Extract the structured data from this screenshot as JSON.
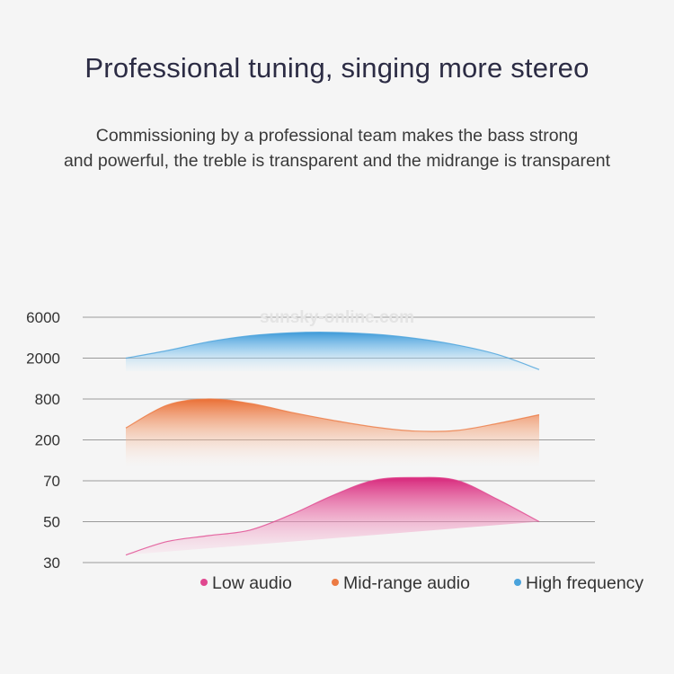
{
  "header": {
    "title": "Professional tuning, singing more stereo",
    "subtitle_line1": "Commissioning by a professional team makes the bass strong",
    "subtitle_line2": "and powerful, the treble is transparent and the midrange is transparent"
  },
  "watermark": "sunsky-online.com",
  "chart_data": {
    "type": "area",
    "title": "",
    "xlabel": "",
    "ylabel": "",
    "y_ticks": [
      "6000",
      "2000",
      "800",
      "200",
      "70",
      "50",
      "30"
    ],
    "grid": true,
    "legend_position": "bottom",
    "x_range": [
      0,
      10
    ],
    "series": [
      {
        "name": "High frequency",
        "color": "#4aa3dc",
        "x": [
          0,
          1,
          2,
          3,
          4,
          5,
          6,
          7,
          8,
          9,
          10
        ],
        "values": [
          2000,
          2450,
          3100,
          3650,
          3950,
          4000,
          3800,
          3400,
          2850,
          2200,
          1550
        ]
      },
      {
        "name": "Mid-range audio",
        "color": "#ec7a43",
        "x": [
          0,
          1,
          2,
          3,
          4,
          5,
          6,
          7,
          8,
          9,
          10
        ],
        "values": [
          300,
          650,
          800,
          690,
          510,
          390,
          310,
          270,
          275,
          350,
          470
        ]
      },
      {
        "name": "Low audio",
        "color": "#e0478f",
        "x": [
          0,
          1,
          2,
          3,
          4,
          5,
          6,
          7,
          8,
          9,
          10
        ],
        "values": [
          33,
          39,
          42,
          45,
          53,
          62,
          71,
          76,
          71,
          60,
          50
        ]
      }
    ]
  },
  "legend": [
    {
      "label": "Low audio",
      "color": "#e0478f"
    },
    {
      "label": "Mid-range audio",
      "color": "#ec7a43"
    },
    {
      "label": "High frequency",
      "color": "#4aa3dc"
    }
  ]
}
